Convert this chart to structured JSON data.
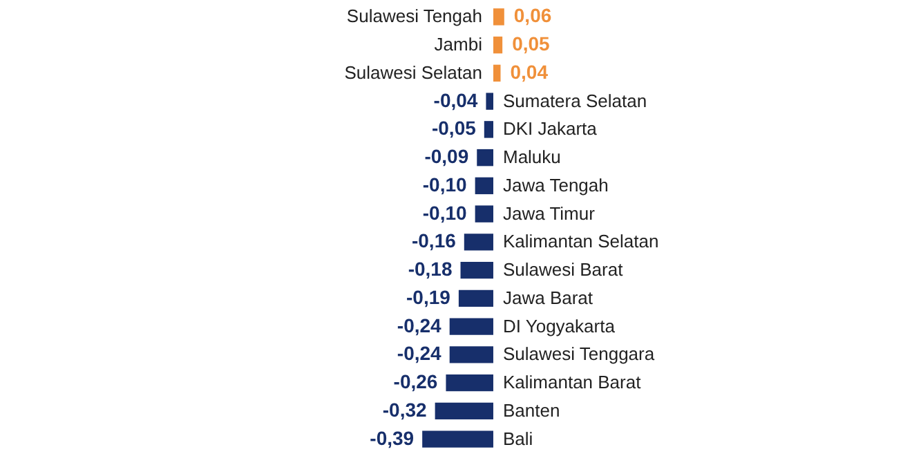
{
  "chart_data": {
    "type": "bar",
    "orientation": "horizontal",
    "categories": [
      "Sulawesi Tengah",
      "Jambi",
      "Sulawesi Selatan",
      "Sumatera Selatan",
      "DKI Jakarta",
      "Maluku",
      "Jawa Tengah",
      "Jawa Timur",
      "Kalimantan Selatan",
      "Sulawesi Barat",
      "Jawa Barat",
      "DI Yogyakarta",
      "Sulawesi Tenggara",
      "Kalimantan Barat",
      "Banten",
      "Bali"
    ],
    "values": [
      0.06,
      0.05,
      0.04,
      -0.04,
      -0.05,
      -0.09,
      -0.1,
      -0.1,
      -0.16,
      -0.18,
      -0.19,
      -0.24,
      -0.24,
      -0.26,
      -0.32,
      -0.39
    ],
    "value_labels": [
      "0,06",
      "0,05",
      "0,04",
      "-0,04",
      "-0,05",
      "-0,09",
      "-0,10",
      "-0,10",
      "-0,16",
      "-0,18",
      "-0,19",
      "-0,24",
      "-0,24",
      "-0,26",
      "-0,32",
      "-0,39"
    ],
    "colors": [
      "#f0903a",
      "#f0903a",
      "#f0903a",
      "#172f6b",
      "#172f6b",
      "#172f6b",
      "#172f6b",
      "#172f6b",
      "#172f6b",
      "#172f6b",
      "#172f6b",
      "#172f6b",
      "#172f6b",
      "#172f6b",
      "#172f6b",
      "#172f6b"
    ]
  }
}
